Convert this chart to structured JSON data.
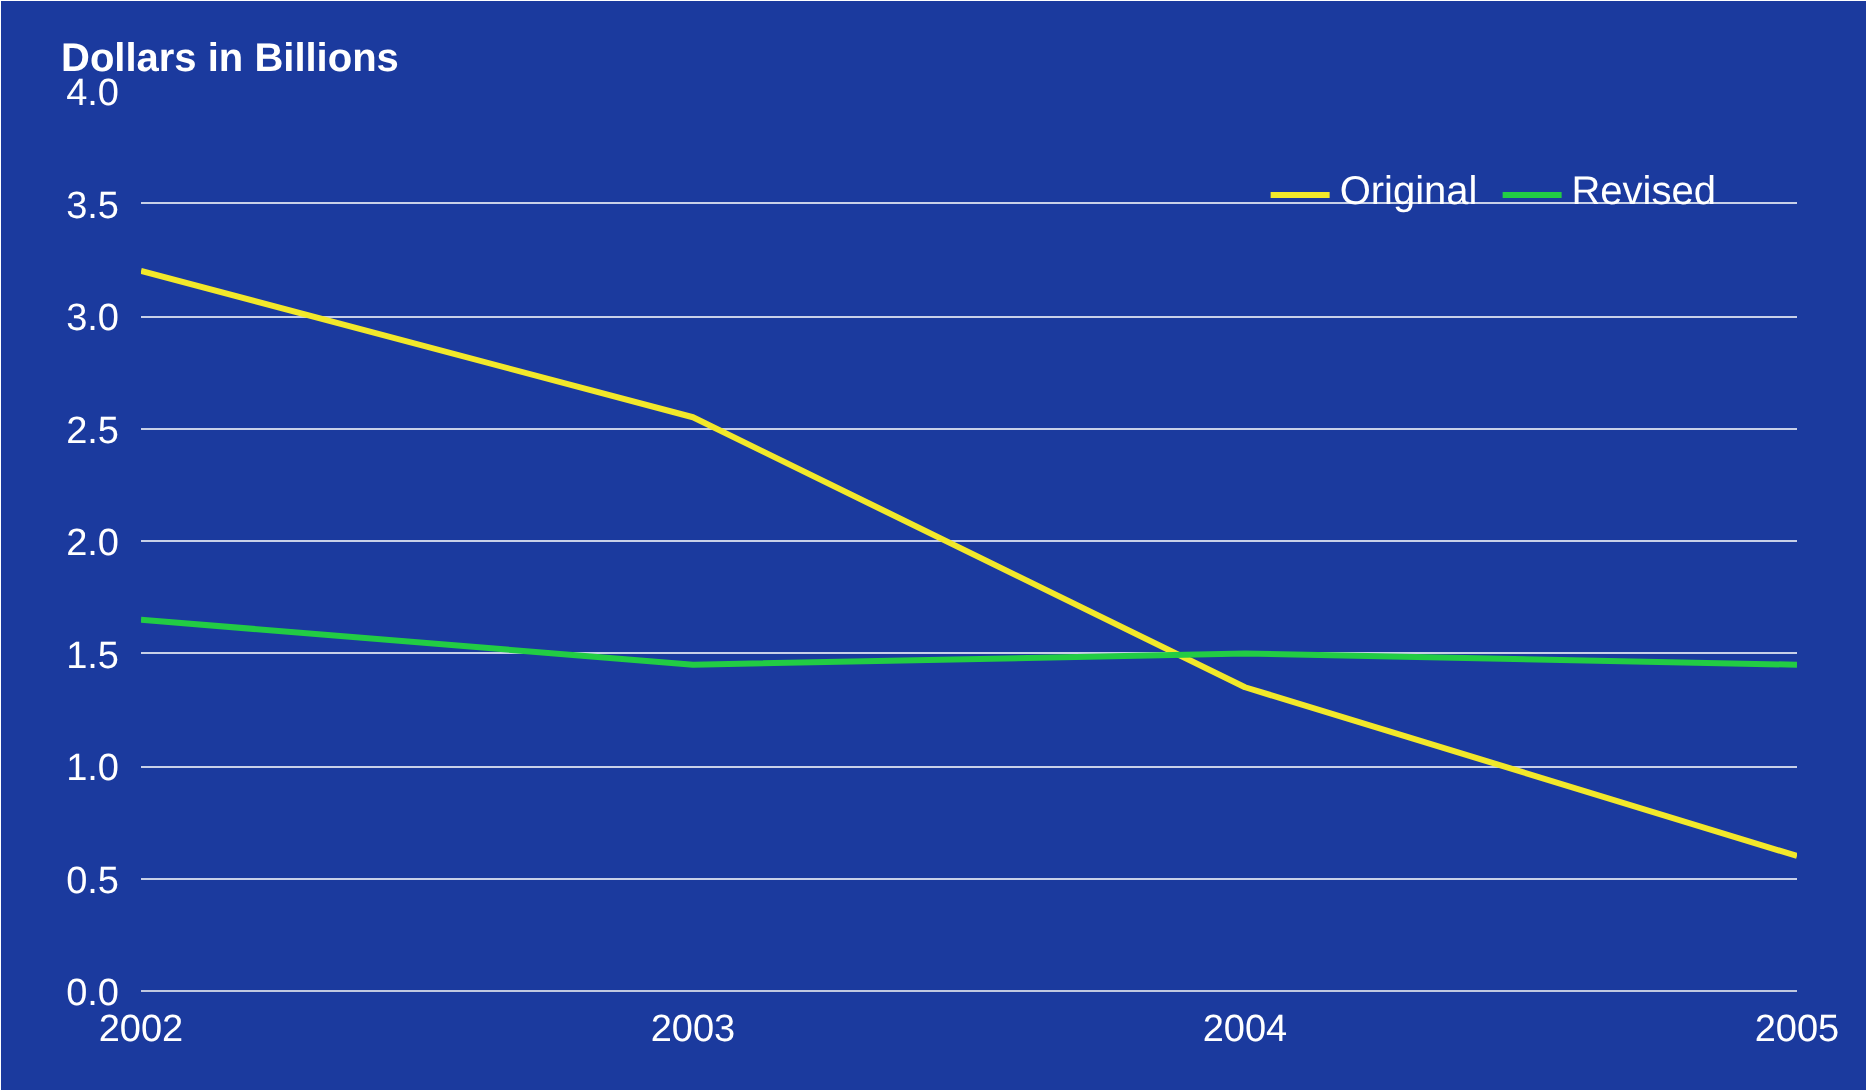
{
  "chart_data": {
    "type": "line",
    "title": "Dollars in Billions",
    "x": [
      2002,
      2003,
      2004,
      2005
    ],
    "series": [
      {
        "name": "Original",
        "color": "#f2e82a",
        "values": [
          3.2,
          2.55,
          1.35,
          0.6
        ]
      },
      {
        "name": "Revised",
        "color": "#22cc44",
        "values": [
          1.65,
          1.45,
          1.5,
          1.45
        ]
      }
    ],
    "xlim": [
      2002,
      2005
    ],
    "xticks": [
      2002,
      2003,
      2004,
      2005
    ],
    "ylim": [
      0,
      4
    ],
    "yticks": [
      {
        "value": 0,
        "label": "0.0"
      },
      {
        "value": 0.5,
        "label": "0.5"
      },
      {
        "value": 1,
        "label": "1.0"
      },
      {
        "value": 1.5,
        "label": "1.5"
      },
      {
        "value": 2,
        "label": "2.0"
      },
      {
        "value": 2.5,
        "label": "2.5"
      },
      {
        "value": 3,
        "label": "3.0"
      },
      {
        "value": 3.5,
        "label": "3.5"
      },
      {
        "value": 4,
        "label": "4.0"
      }
    ],
    "grid": "y",
    "legend": "top right",
    "marker": "none",
    "line_style": "solid"
  }
}
